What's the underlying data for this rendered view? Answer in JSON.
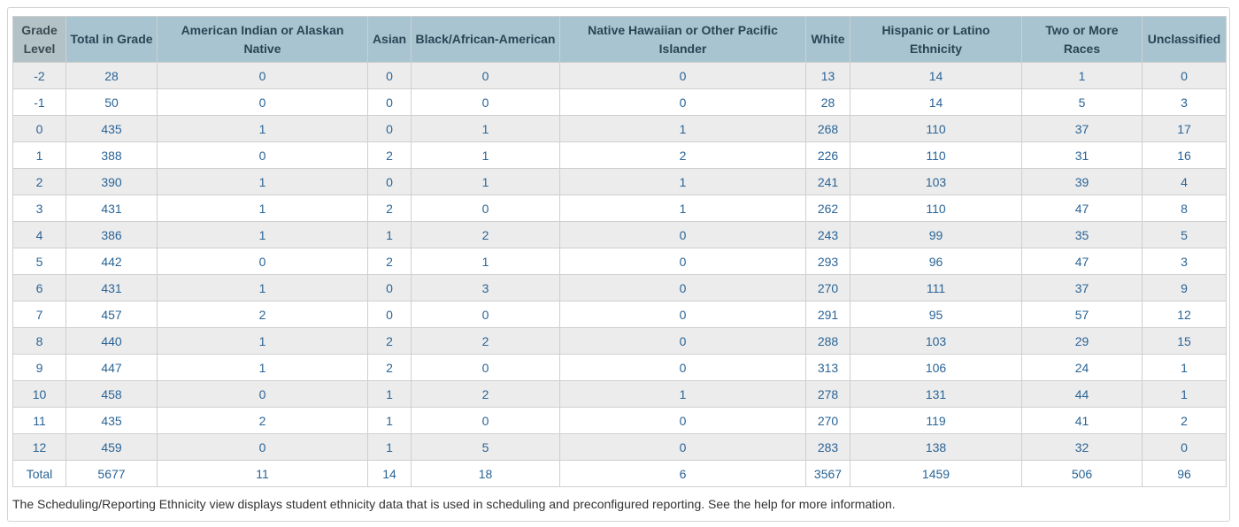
{
  "table": {
    "columns": [
      "Grade Level",
      "Total in Grade",
      "American Indian or Alaskan Native",
      "Asian",
      "Black/African-American",
      "Native Hawaiian or Other Pacific Islander",
      "White",
      "Hispanic or Latino Ethnicity",
      "Two or More Races",
      "Unclassified"
    ],
    "rows": [
      [
        -2,
        28,
        0,
        0,
        0,
        0,
        13,
        14,
        1,
        0
      ],
      [
        -1,
        50,
        0,
        0,
        0,
        0,
        28,
        14,
        5,
        3
      ],
      [
        0,
        435,
        1,
        0,
        1,
        1,
        268,
        110,
        37,
        17
      ],
      [
        1,
        388,
        0,
        2,
        1,
        2,
        226,
        110,
        31,
        16
      ],
      [
        2,
        390,
        1,
        0,
        1,
        1,
        241,
        103,
        39,
        4
      ],
      [
        3,
        431,
        1,
        2,
        0,
        1,
        262,
        110,
        47,
        8
      ],
      [
        4,
        386,
        1,
        1,
        2,
        0,
        243,
        99,
        35,
        5
      ],
      [
        5,
        442,
        0,
        2,
        1,
        0,
        293,
        96,
        47,
        3
      ],
      [
        6,
        431,
        1,
        0,
        3,
        0,
        270,
        111,
        37,
        9
      ],
      [
        7,
        457,
        2,
        0,
        0,
        0,
        291,
        95,
        57,
        12
      ],
      [
        8,
        440,
        1,
        2,
        2,
        0,
        288,
        103,
        29,
        15
      ],
      [
        9,
        447,
        1,
        2,
        0,
        0,
        313,
        106,
        24,
        1
      ],
      [
        10,
        458,
        0,
        1,
        2,
        1,
        278,
        131,
        44,
        1
      ],
      [
        11,
        435,
        2,
        1,
        0,
        0,
        270,
        119,
        41,
        2
      ],
      [
        12,
        459,
        0,
        1,
        5,
        0,
        283,
        138,
        32,
        0
      ],
      [
        "Total",
        5677,
        11,
        14,
        18,
        6,
        3567,
        1459,
        506,
        96
      ]
    ]
  },
  "note": "The Scheduling/Reporting Ethnicity view displays student ethnicity data that is used in scheduling and preconfigured reporting. See the help for more information."
}
